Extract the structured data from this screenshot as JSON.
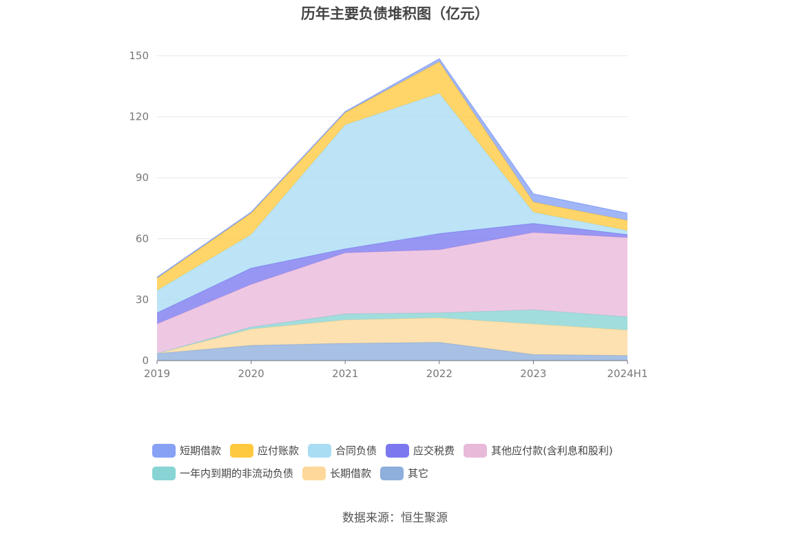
{
  "chart_data": {
    "type": "area",
    "stacked": true,
    "title": "历年主要负债堆积图（亿元）",
    "x": [
      "2019",
      "2020",
      "2021",
      "2022",
      "2023",
      "2024H1"
    ],
    "ylim": [
      0,
      150
    ],
    "yticks": [
      "0",
      "30",
      "60",
      "90",
      "120",
      "150"
    ],
    "grid": true,
    "legend_position": "bottom",
    "series": [
      {
        "name": "其它",
        "color": "#8eaedc",
        "values": [
          3.5,
          7.5,
          8.5,
          9,
          3,
          2.5
        ]
      },
      {
        "name": "长期借款",
        "color": "#fdd89a",
        "values": [
          0,
          8,
          11.5,
          12,
          15,
          12.5
        ]
      },
      {
        "name": "一年内到期的非流动负债",
        "color": "#88d4d4",
        "values": [
          0,
          1,
          3,
          2.5,
          7,
          6.5
        ]
      },
      {
        "name": "其他应付款(含利息和股利)",
        "color": "#e9b9da",
        "values": [
          14.5,
          21,
          30,
          31,
          38,
          39
        ]
      },
      {
        "name": "应交税费",
        "color": "#7b78ef",
        "values": [
          5.5,
          8,
          2,
          8,
          4.5,
          1.5
        ]
      },
      {
        "name": "合同负债",
        "color": "#a9ddf4",
        "values": [
          11,
          16.5,
          61,
          69,
          5.5,
          2
        ]
      },
      {
        "name": "应付账款",
        "color": "#ffc93f",
        "values": [
          6,
          10.5,
          6,
          15.5,
          5,
          5
        ]
      },
      {
        "name": "短期借款",
        "color": "#87a1f5",
        "values": [
          0.5,
          0.5,
          0.5,
          1.5,
          4,
          3.5
        ]
      }
    ]
  },
  "legend": {
    "rows": [
      [
        {
          "label": "短期借款",
          "color": "#87a1f5"
        },
        {
          "label": "应付账款",
          "color": "#ffc93f"
        },
        {
          "label": "合同负债",
          "color": "#a9ddf4"
        },
        {
          "label": "应交税费",
          "color": "#7b78ef"
        },
        {
          "label": "其他应付款(含利息和股利)",
          "color": "#e9b9da"
        }
      ],
      [
        {
          "label": "一年内到期的非流动负债",
          "color": "#88d4d4"
        },
        {
          "label": "长期借款",
          "color": "#fdd89a"
        },
        {
          "label": "其它",
          "color": "#8eaedc"
        }
      ]
    ]
  },
  "source": "数据来源：恒生聚源"
}
